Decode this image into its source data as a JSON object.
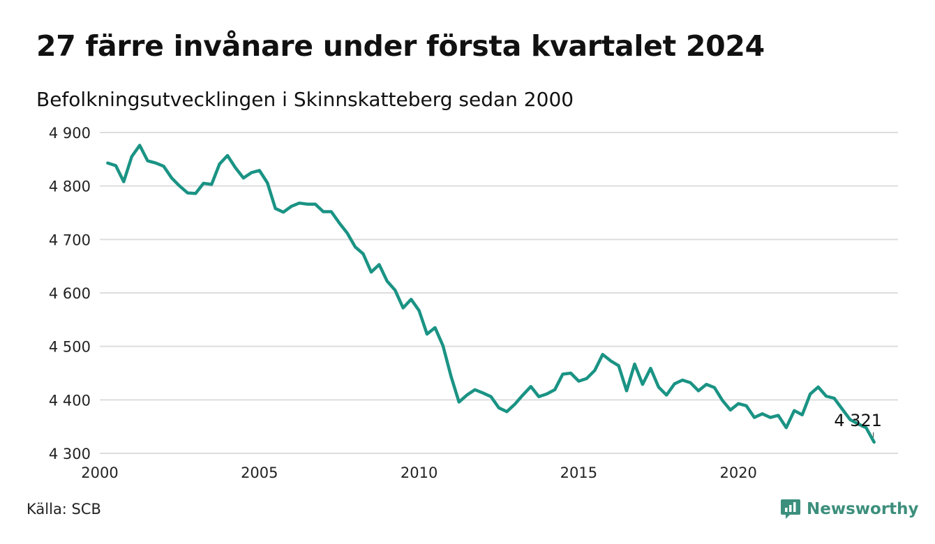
{
  "title": "27 färre invånare under första kvartalet 2024",
  "subtitle": "Befolkningsutvecklingen i Skinnskatteberg sedan 2000",
  "source": "Källa: SCB",
  "brand": {
    "name": "Newsworthy",
    "icon": "newsworthy-logo-icon",
    "color": "#3c8f7c"
  },
  "chart_data": {
    "type": "line",
    "title": "27 färre invånare under första kvartalet 2024",
    "subtitle": "Befolkningsutvecklingen i Skinnskatteberg sedan 2000",
    "xlabel": "",
    "ylabel": "",
    "xlim": [
      2000,
      2025
    ],
    "ylim": [
      4300,
      4900
    ],
    "grid": true,
    "line_color": "#1a9384",
    "y_ticks": [
      {
        "value": 4300,
        "label": "4 300"
      },
      {
        "value": 4400,
        "label": "4 400"
      },
      {
        "value": 4500,
        "label": "4 500"
      },
      {
        "value": 4600,
        "label": "4 600"
      },
      {
        "value": 4700,
        "label": "4 700"
      },
      {
        "value": 4800,
        "label": "4 800"
      },
      {
        "value": 4900,
        "label": "4 900"
      }
    ],
    "x_ticks": [
      {
        "value": 2000,
        "label": "2000"
      },
      {
        "value": 2005,
        "label": "2005"
      },
      {
        "value": 2010,
        "label": "2010"
      },
      {
        "value": 2015,
        "label": "2015"
      },
      {
        "value": 2020,
        "label": "2020"
      }
    ],
    "end_label": "4 321",
    "series": [
      {
        "name": "",
        "x": [
          2000.25,
          2000.5,
          2000.75,
          2001.0,
          2001.25,
          2001.5,
          2001.75,
          2002.0,
          2002.25,
          2002.5,
          2002.75,
          2003.0,
          2003.25,
          2003.5,
          2003.75,
          2004.0,
          2004.25,
          2004.5,
          2004.75,
          2005.0,
          2005.25,
          2005.5,
          2005.75,
          2006.0,
          2006.25,
          2006.5,
          2006.75,
          2007.0,
          2007.25,
          2007.5,
          2007.75,
          2008.0,
          2008.25,
          2008.5,
          2008.75,
          2009.0,
          2009.25,
          2009.5,
          2009.75,
          2010.0,
          2010.25,
          2010.5,
          2010.75,
          2011.0,
          2011.25,
          2011.5,
          2011.75,
          2012.0,
          2012.25,
          2012.5,
          2012.75,
          2013.0,
          2013.25,
          2013.5,
          2013.75,
          2014.0,
          2014.25,
          2014.5,
          2014.75,
          2015.0,
          2015.25,
          2015.5,
          2015.75,
          2016.0,
          2016.25,
          2016.5,
          2016.75,
          2017.0,
          2017.25,
          2017.5,
          2017.75,
          2018.0,
          2018.25,
          2018.5,
          2018.75,
          2019.0,
          2019.25,
          2019.5,
          2019.75,
          2020.0,
          2020.25,
          2020.5,
          2020.75,
          2021.0,
          2021.25,
          2021.5,
          2021.75,
          2022.0,
          2022.25,
          2022.5,
          2022.75,
          2023.0,
          2023.25,
          2023.5,
          2023.75,
          2024.0,
          2024.25
        ],
        "y": [
          4843,
          4838,
          4808,
          4855,
          4876,
          4847,
          4843,
          4837,
          4815,
          4800,
          4787,
          4786,
          4805,
          4803,
          4841,
          4857,
          4834,
          4815,
          4825,
          4829,
          4806,
          4758,
          4751,
          4762,
          4768,
          4766,
          4766,
          4752,
          4752,
          4731,
          4712,
          4686,
          4673,
          4639,
          4653,
          4622,
          4605,
          4572,
          4588,
          4567,
          4523,
          4535,
          4501,
          4444,
          4396,
          4409,
          4419,
          4413,
          4406,
          4385,
          4378,
          4392,
          4409,
          4425,
          4406,
          4411,
          4419,
          4448,
          4450,
          4435,
          4440,
          4455,
          4485,
          4473,
          4464,
          4417,
          4467,
          4429,
          4459,
          4424,
          4409,
          4430,
          4437,
          4432,
          4417,
          4429,
          4423,
          4399,
          4381,
          4393,
          4389,
          4367,
          4374,
          4367,
          4371,
          4348,
          4380,
          4372,
          4411,
          4424,
          4407,
          4403,
          4383,
          4363,
          4355,
          4348,
          4321
        ]
      }
    ]
  }
}
